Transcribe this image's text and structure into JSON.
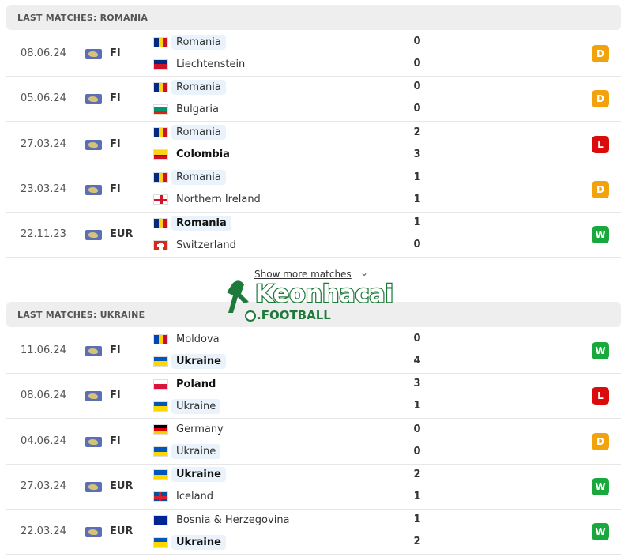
{
  "colors": {
    "draw": "#f2a20c",
    "loss": "#d90b0b",
    "win": "#19a83b"
  },
  "sections": [
    {
      "title": "LAST MATCHES: ROMANIA",
      "matches": [
        {
          "date": "08.06.24",
          "comp": "FI",
          "home": {
            "name": "Romania",
            "flag": "romania",
            "hl": true,
            "bold": false
          },
          "away": {
            "name": "Liechtenstein",
            "flag": "liechtenstein",
            "hl": false,
            "bold": false
          },
          "hs": "0",
          "as": "0",
          "result": "D"
        },
        {
          "date": "05.06.24",
          "comp": "FI",
          "home": {
            "name": "Romania",
            "flag": "romania",
            "hl": true,
            "bold": false
          },
          "away": {
            "name": "Bulgaria",
            "flag": "bulgaria",
            "hl": false,
            "bold": false
          },
          "hs": "0",
          "as": "0",
          "result": "D"
        },
        {
          "date": "27.03.24",
          "comp": "FI",
          "home": {
            "name": "Romania",
            "flag": "romania",
            "hl": true,
            "bold": false
          },
          "away": {
            "name": "Colombia",
            "flag": "colombia",
            "hl": false,
            "bold": true
          },
          "hs": "2",
          "as": "3",
          "result": "L"
        },
        {
          "date": "23.03.24",
          "comp": "FI",
          "home": {
            "name": "Romania",
            "flag": "romania",
            "hl": true,
            "bold": false
          },
          "away": {
            "name": "Northern Ireland",
            "flag": "northern-ireland",
            "hl": false,
            "bold": false
          },
          "hs": "1",
          "as": "1",
          "result": "D"
        },
        {
          "date": "22.11.23",
          "comp": "EUR",
          "home": {
            "name": "Romania",
            "flag": "romania",
            "hl": true,
            "bold": true
          },
          "away": {
            "name": "Switzerland",
            "flag": "switzerland",
            "hl": false,
            "bold": false
          },
          "hs": "1",
          "as": "0",
          "result": "W"
        }
      ]
    },
    {
      "title": "LAST MATCHES: UKRAINE",
      "matches": [
        {
          "date": "11.06.24",
          "comp": "FI",
          "home": {
            "name": "Moldova",
            "flag": "moldova",
            "hl": false,
            "bold": false
          },
          "away": {
            "name": "Ukraine",
            "flag": "ukraine",
            "hl": true,
            "bold": true
          },
          "hs": "0",
          "as": "4",
          "result": "W"
        },
        {
          "date": "08.06.24",
          "comp": "FI",
          "home": {
            "name": "Poland",
            "flag": "poland",
            "hl": false,
            "bold": true
          },
          "away": {
            "name": "Ukraine",
            "flag": "ukraine",
            "hl": true,
            "bold": false
          },
          "hs": "3",
          "as": "1",
          "result": "L"
        },
        {
          "date": "04.06.24",
          "comp": "FI",
          "home": {
            "name": "Germany",
            "flag": "germany",
            "hl": false,
            "bold": false
          },
          "away": {
            "name": "Ukraine",
            "flag": "ukraine",
            "hl": true,
            "bold": false
          },
          "hs": "0",
          "as": "0",
          "result": "D"
        },
        {
          "date": "27.03.24",
          "comp": "EUR",
          "home": {
            "name": "Ukraine",
            "flag": "ukraine",
            "hl": true,
            "bold": true
          },
          "away": {
            "name": "Iceland",
            "flag": "iceland",
            "hl": false,
            "bold": false
          },
          "hs": "2",
          "as": "1",
          "result": "W"
        },
        {
          "date": "22.03.24",
          "comp": "EUR",
          "home": {
            "name": "Bosnia & Herzegovina",
            "flag": "bosnia",
            "hl": false,
            "bold": false
          },
          "away": {
            "name": "Ukraine",
            "flag": "ukraine",
            "hl": true,
            "bold": true
          },
          "hs": "1",
          "as": "2",
          "result": "W"
        }
      ]
    }
  ],
  "show_more": "Show more matches",
  "watermark": {
    "brand": "Keonhacai",
    "sub": ".FOOTBALL"
  }
}
